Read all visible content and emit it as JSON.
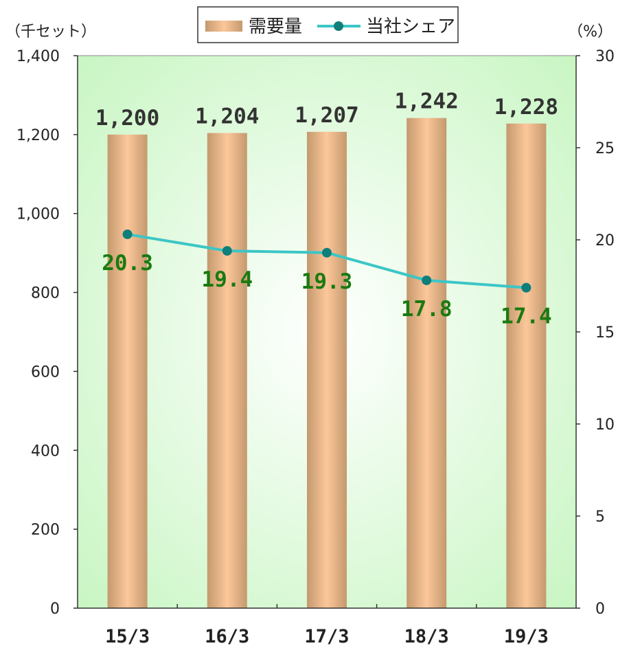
{
  "chart_data": {
    "type": "bar",
    "categories": [
      "15/3",
      "16/3",
      "17/3",
      "18/3",
      "19/3"
    ],
    "series": [
      {
        "name": "需要量",
        "type": "bar",
        "axis": "left",
        "values": [
          1200,
          1204,
          1207,
          1242,
          1228
        ],
        "labels": [
          "1,200",
          "1,204",
          "1,207",
          "1,242",
          "1,228"
        ]
      },
      {
        "name": "当社シェア",
        "type": "line",
        "axis": "right",
        "values": [
          20.3,
          19.4,
          19.3,
          17.8,
          17.4
        ],
        "labels": [
          "20.3",
          "19.4",
          "19.3",
          "17.8",
          "17.4"
        ]
      }
    ],
    "ylabel": "（千セット）",
    "y2label": "（%）",
    "ylim": [
      0,
      1400
    ],
    "y2lim": [
      0,
      30
    ],
    "yticks": [
      0,
      200,
      400,
      600,
      800,
      1000,
      1200,
      1400
    ],
    "y2ticks": [
      0,
      5,
      10,
      15,
      20,
      25,
      30
    ],
    "ytick_labels": [
      "0",
      "200",
      "400",
      "600",
      "800",
      "1,000",
      "1,200",
      "1,400"
    ],
    "y2tick_labels": [
      "0",
      "5",
      "10",
      "15",
      "20",
      "25",
      "30"
    ],
    "grid": false,
    "legend_position": "top-center",
    "colors": {
      "bar_light": "#fcc79a",
      "bar_dark": "#c4996e",
      "line": "#3cc6c6",
      "marker": "#0e7f7a",
      "line_label": "#1a7a10",
      "plot_bg_center": "#ffffff",
      "plot_bg_edge": "#c5f5bf"
    }
  }
}
